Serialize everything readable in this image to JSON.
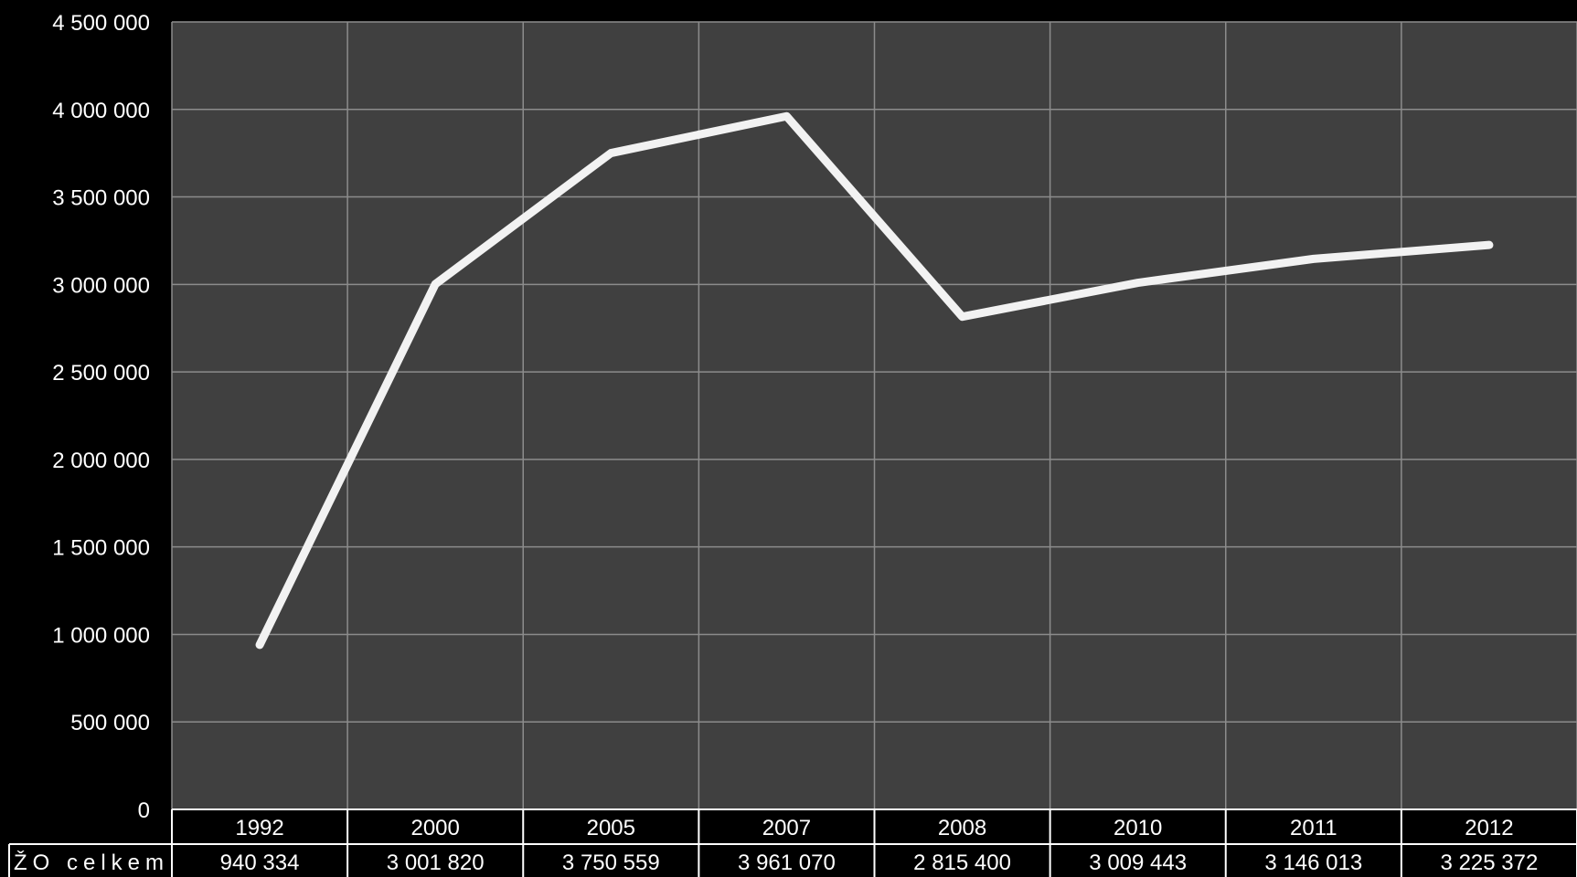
{
  "chart_data": {
    "type": "line",
    "categories": [
      "1992",
      "2000",
      "2005",
      "2007",
      "2008",
      "2010",
      "2011",
      "2012"
    ],
    "series": [
      {
        "name": "ŽO celkem",
        "values": [
          940334,
          3001820,
          3750559,
          3961070,
          2815400,
          3009443,
          3146013,
          3225372
        ],
        "value_labels": [
          "940 334",
          "3 001 820",
          "3 750 559",
          "3 961 070",
          "2 815 400",
          "3 009 443",
          "3 146 013",
          "3 225 372"
        ],
        "color": "#f2f2f2"
      }
    ],
    "ylim": [
      0,
      4500000
    ],
    "yticks": [
      0,
      500000,
      1000000,
      1500000,
      2000000,
      2500000,
      3000000,
      3500000,
      4000000,
      4500000
    ],
    "ytick_labels": [
      "0",
      "500 000",
      "1 000 000",
      "1 500 000",
      "2 000 000",
      "2 500 000",
      "3 000 000",
      "3 500 000",
      "4 000 000",
      "4 500 000"
    ],
    "grid": true,
    "data_table": true,
    "title": "",
    "xlabel": "",
    "ylabel": "",
    "colors": {
      "background": "#000000",
      "plot_background": "#404040",
      "grid": "#8c8c8c",
      "line": "#f2f2f2",
      "text": "#ffffff"
    }
  }
}
